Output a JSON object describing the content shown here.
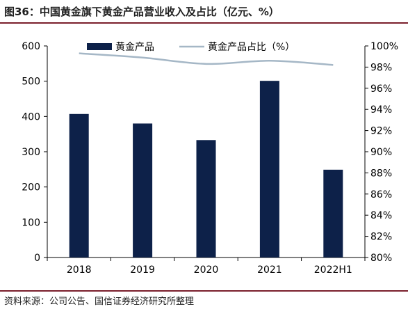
{
  "title": "图36：中国黄金旗下黄金产品营业收入及占比（亿元、%）",
  "source": "资料来源：公司公告、国信证券经济研究所整理",
  "colors": {
    "bar": "#0d2149",
    "line": "#a5b7c6",
    "rule": "#7a1f2c",
    "axis": "#000000"
  },
  "chart_data": {
    "type": "bar",
    "categories": [
      "2018",
      "2019",
      "2020",
      "2021",
      "2022H1"
    ],
    "series": [
      {
        "name": "黄金产品",
        "type": "bar",
        "axis": "left",
        "values": [
          407,
          380,
          333,
          501,
          249
        ]
      },
      {
        "name": "黄金产品占比（%）",
        "type": "line",
        "axis": "right",
        "values": [
          99.3,
          98.9,
          98.3,
          98.6,
          98.2
        ]
      }
    ],
    "y_left": {
      "lim": [
        0,
        600
      ],
      "ticks": [
        "0",
        "100",
        "200",
        "300",
        "400",
        "500",
        "600"
      ]
    },
    "y_right": {
      "lim": [
        80,
        100
      ],
      "ticks": [
        "80%",
        "82%",
        "84%",
        "86%",
        "88%",
        "90%",
        "92%",
        "94%",
        "96%",
        "98%",
        "100%"
      ]
    },
    "legend": "top-center",
    "grid": false
  }
}
